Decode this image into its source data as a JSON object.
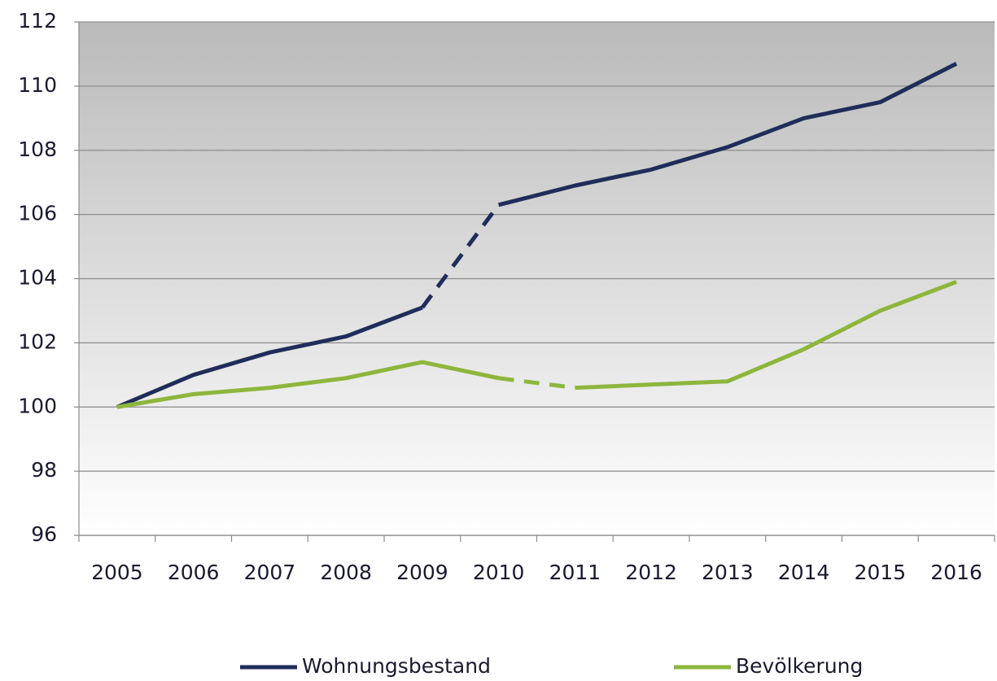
{
  "chart_data": {
    "type": "line",
    "categories": [
      "2005",
      "2006",
      "2007",
      "2008",
      "2009",
      "2010",
      "2011",
      "2012",
      "2013",
      "2014",
      "2015",
      "2016"
    ],
    "series": [
      {
        "name": "Wohnungsbestand",
        "color": "#1f2d5a",
        "values": [
          100,
          101.0,
          101.7,
          102.2,
          103.1,
          106.3,
          106.9,
          107.4,
          108.1,
          109.0,
          109.5,
          110.7
        ],
        "dashed_segments": [
          4
        ]
      },
      {
        "name": "Bevölkerung",
        "color": "#8db63c",
        "values": [
          100,
          100.4,
          100.6,
          100.9,
          101.4,
          100.9,
          100.6,
          100.7,
          100.8,
          101.8,
          103.0,
          103.9
        ],
        "dashed_segments": [
          5
        ]
      }
    ],
    "ylim": [
      96,
      112
    ],
    "yticks": [
      96,
      98,
      100,
      102,
      104,
      106,
      108,
      110,
      112
    ],
    "grid": true,
    "legend": "bottom"
  }
}
